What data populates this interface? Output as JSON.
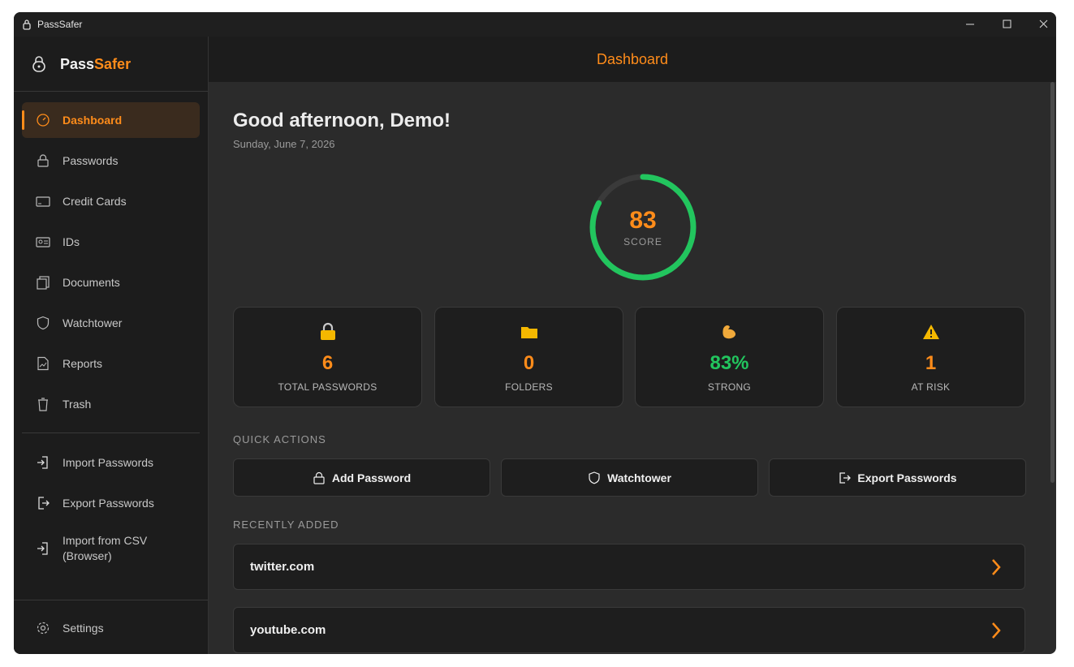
{
  "window": {
    "title": "PassSafer"
  },
  "brand": {
    "part1": "Pass",
    "part2": "Safer"
  },
  "sidebar": {
    "nav": [
      "Dashboard",
      "Passwords",
      "Credit Cards",
      "IDs",
      "Documents",
      "Watchtower",
      "Reports",
      "Trash"
    ],
    "tools": [
      "Import Passwords",
      "Export Passwords",
      "Import from CSV (Browser)"
    ],
    "settings": "Settings"
  },
  "header": {
    "title": "Dashboard"
  },
  "greeting": {
    "title": "Good afternoon, Demo!",
    "date": "Sunday, June 7, 2026"
  },
  "score": {
    "value": 83,
    "label": "SCORE"
  },
  "stats": [
    {
      "value": 6,
      "label": "TOTAL PASSWORDS"
    },
    {
      "value": 0,
      "label": "FOLDERS"
    },
    {
      "value": "83%",
      "label": "STRONG"
    },
    {
      "value": 1,
      "label": "AT RISK"
    }
  ],
  "quick_actions": {
    "title": "QUICK ACTIONS",
    "items": [
      "Add Password",
      "Watchtower",
      "Export Passwords"
    ]
  },
  "recent": {
    "title": "RECENTLY ADDED",
    "items": [
      "twitter.com",
      "youtube.com"
    ]
  }
}
